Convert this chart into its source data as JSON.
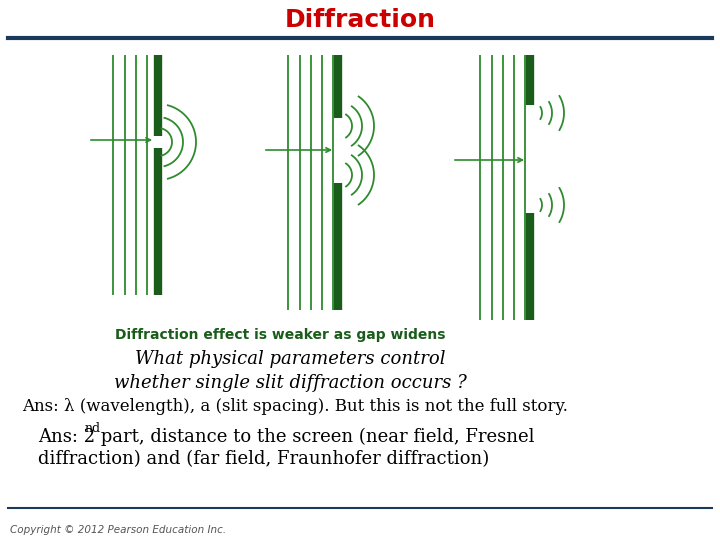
{
  "title": "Diffraction",
  "title_color": "#cc0000",
  "title_fontsize": 18,
  "bg_color": "#ffffff",
  "dark_green": "#1a5c1a",
  "light_green": "#2e8b2e",
  "header_line_color": "#1a3a5c",
  "caption_text": "Diffraction effect is weaker as gap widens",
  "italic_q": "What physical parameters control\nwhether single slit diffraction occurs ?",
  "ans1": "Ans: λ (wavelength), a (slit spacing). But this is not the full story.",
  "ans2_pre": "Ans: 2",
  "ans2_sup": "nd",
  "ans2_post": " part, distance to the screen (near field, Fresnel",
  "ans2_line2": "diffraction) and (far field, Fraunhofer diffraction)",
  "copyright": "Copyright © 2012 Pearson Education Inc."
}
